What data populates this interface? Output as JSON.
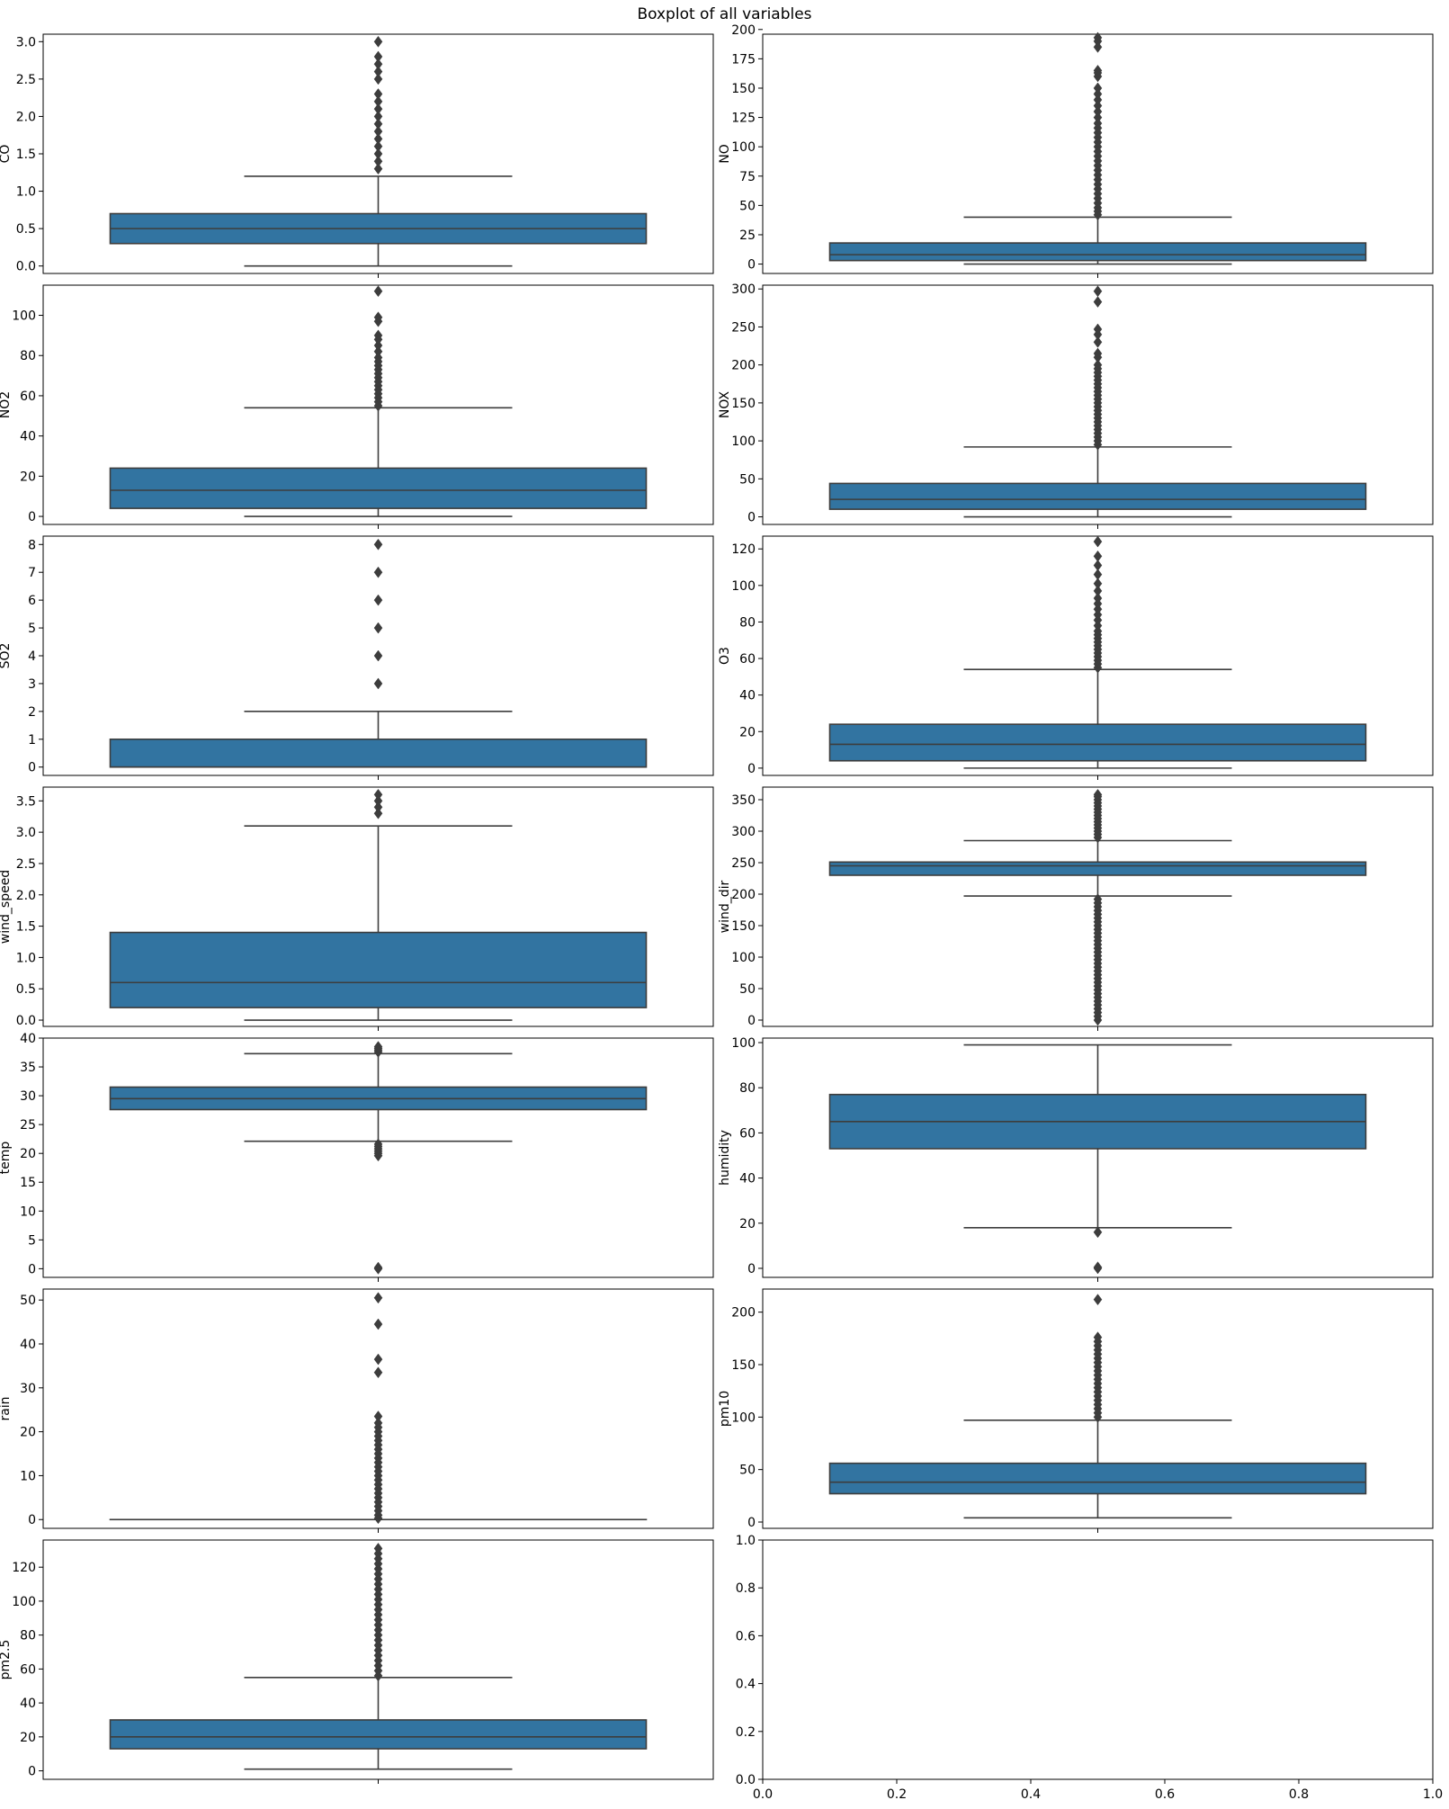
{
  "chart_data": {
    "title": "Boxplot of all variables",
    "type": "box",
    "layout": "7 rows x 2 columns",
    "colors": {
      "box_fill": "#3274a1",
      "line": "#3d3d3d",
      "axis": "#000000",
      "text": "#000000"
    },
    "panels": [
      {
        "ylabel": "CO",
        "ylim": [
          -0.1,
          3.1
        ],
        "yticks": [
          0.0,
          0.5,
          1.0,
          1.5,
          2.0,
          2.5,
          3.0
        ],
        "decimals": 1,
        "whisker_low": 0.0,
        "q1": 0.3,
        "median": 0.5,
        "q3": 0.7,
        "whisker_high": 1.2,
        "fliers": [
          1.3,
          1.4,
          1.5,
          1.6,
          1.7,
          1.8,
          1.9,
          2.0,
          2.1,
          2.2,
          2.3,
          2.5,
          2.6,
          2.7,
          2.8,
          3.0
        ]
      },
      {
        "ylabel": "NO",
        "ylim": [
          -8,
          196
        ],
        "yticks": [
          0,
          25,
          50,
          75,
          100,
          125,
          150,
          175,
          200
        ],
        "decimals": 0,
        "whisker_low": 0,
        "q1": 3,
        "median": 8,
        "q3": 18,
        "whisker_high": 40,
        "fliers": [
          42,
          45,
          48,
          52,
          56,
          60,
          64,
          68,
          72,
          76,
          80,
          84,
          88,
          92,
          96,
          100,
          104,
          108,
          112,
          116,
          120,
          125,
          130,
          135,
          140,
          145,
          150,
          160,
          163,
          165,
          185,
          190,
          193
        ]
      },
      {
        "ylabel": "NO2",
        "ylim": [
          -4,
          115
        ],
        "yticks": [
          0,
          20,
          40,
          60,
          80,
          100
        ],
        "decimals": 0,
        "whisker_low": 0,
        "q1": 4,
        "median": 13,
        "q3": 24,
        "whisker_high": 54,
        "fliers": [
          55,
          57,
          59,
          61,
          63,
          65,
          67,
          69,
          71,
          73,
          75,
          77,
          79,
          82,
          85,
          88,
          90,
          97,
          99,
          112
        ]
      },
      {
        "ylabel": "NOX",
        "ylim": [
          -10,
          305
        ],
        "yticks": [
          0,
          50,
          100,
          150,
          200,
          250,
          300
        ],
        "decimals": 0,
        "whisker_low": 0,
        "q1": 10,
        "median": 23,
        "q3": 44,
        "whisker_high": 92,
        "fliers": [
          95,
          100,
          105,
          110,
          115,
          120,
          125,
          130,
          135,
          140,
          145,
          150,
          155,
          160,
          165,
          170,
          175,
          180,
          185,
          190,
          195,
          200,
          210,
          215,
          230,
          240,
          247,
          283,
          297
        ]
      },
      {
        "ylabel": "SO2",
        "ylim": [
          -0.3,
          8.3
        ],
        "yticks": [
          0,
          1,
          2,
          3,
          4,
          5,
          6,
          7,
          8
        ],
        "decimals": 0,
        "whisker_low": 0,
        "q1": 0,
        "median": 0,
        "q3": 1,
        "whisker_high": 2,
        "fliers": [
          3,
          4,
          5,
          6,
          7,
          8
        ]
      },
      {
        "ylabel": "O3",
        "ylim": [
          -4,
          127
        ],
        "yticks": [
          0,
          20,
          40,
          60,
          80,
          100,
          120
        ],
        "decimals": 0,
        "whisker_low": 0,
        "q1": 4,
        "median": 13,
        "q3": 24,
        "whisker_high": 54,
        "fliers": [
          55,
          57,
          59,
          61,
          63,
          65,
          67,
          69,
          71,
          73,
          75,
          78,
          81,
          84,
          87,
          90,
          93,
          97,
          101,
          106,
          111,
          116,
          124
        ]
      },
      {
        "ylabel": "wind_speed",
        "ylim": [
          -0.1,
          3.72
        ],
        "yticks": [
          0.0,
          0.5,
          1.0,
          1.5,
          2.0,
          2.5,
          3.0,
          3.5
        ],
        "decimals": 1,
        "whisker_low": 0.0,
        "q1": 0.2,
        "median": 0.6,
        "q3": 1.4,
        "whisker_high": 3.1,
        "fliers": [
          3.3,
          3.4,
          3.5,
          3.6
        ]
      },
      {
        "ylabel": "wind_dir",
        "ylim": [
          -10,
          370
        ],
        "yticks": [
          0,
          50,
          100,
          150,
          200,
          250,
          300,
          350
        ],
        "decimals": 0,
        "whisker_low": 197,
        "q1": 230,
        "median": 245,
        "q3": 251,
        "whisker_high": 285,
        "fliers": [
          0,
          6,
          12,
          18,
          24,
          30,
          36,
          42,
          48,
          54,
          60,
          66,
          72,
          78,
          84,
          90,
          96,
          102,
          108,
          114,
          120,
          126,
          132,
          138,
          144,
          150,
          156,
          162,
          168,
          174,
          180,
          186,
          192,
          290,
          295,
          300,
          305,
          310,
          315,
          320,
          325,
          330,
          335,
          340,
          345,
          350,
          355,
          358
        ]
      },
      {
        "ylabel": "temp",
        "ylim": [
          -1.5,
          40
        ],
        "yticks": [
          0,
          5,
          10,
          15,
          20,
          25,
          30,
          35,
          40
        ],
        "decimals": 0,
        "whisker_low": 22.1,
        "q1": 27.6,
        "median": 29.5,
        "q3": 31.5,
        "whisker_high": 37.3,
        "fliers": [
          0,
          0.2,
          19.6,
          20.0,
          20.4,
          20.8,
          21.2,
          21.6,
          37.6,
          37.9,
          38.2,
          38.5
        ]
      },
      {
        "ylabel": "humidity",
        "ylim": [
          -4,
          102
        ],
        "yticks": [
          0,
          20,
          40,
          60,
          80,
          100
        ],
        "decimals": 0,
        "whisker_low": 18,
        "q1": 53,
        "median": 65,
        "q3": 77,
        "whisker_high": 99,
        "fliers": [
          0,
          0.5,
          16
        ]
      },
      {
        "ylabel": "rain",
        "ylim": [
          -2,
          52.5
        ],
        "yticks": [
          0,
          10,
          20,
          30,
          40,
          50
        ],
        "decimals": 0,
        "whisker_low": 0,
        "q1": 0,
        "median": 0,
        "q3": 0,
        "whisker_high": 0,
        "fliers": [
          0.3,
          1,
          2,
          3,
          4,
          5,
          6,
          7,
          8,
          9,
          10,
          11,
          12,
          13,
          14,
          15,
          16,
          17,
          18,
          19,
          20,
          21,
          22,
          23.5,
          33.5,
          36.5,
          44.5,
          50.5
        ]
      },
      {
        "ylabel": "pm10",
        "ylim": [
          -6,
          222
        ],
        "yticks": [
          0,
          50,
          100,
          150,
          200
        ],
        "decimals": 0,
        "whisker_low": 4,
        "q1": 27,
        "median": 38,
        "q3": 56,
        "whisker_high": 97,
        "fliers": [
          100,
          104,
          108,
          112,
          116,
          120,
          124,
          128,
          132,
          136,
          140,
          144,
          148,
          152,
          156,
          160,
          164,
          168,
          172,
          176,
          212
        ]
      },
      {
        "ylabel": "pm2.5",
        "ylim": [
          -5,
          136
        ],
        "yticks": [
          0,
          20,
          40,
          60,
          80,
          100,
          120
        ],
        "decimals": 0,
        "whisker_low": 1,
        "q1": 13,
        "median": 20,
        "q3": 30,
        "whisker_high": 55,
        "fliers": [
          56,
          59,
          62,
          65,
          68,
          71,
          74,
          77,
          80,
          83,
          86,
          89,
          92,
          95,
          98,
          101,
          104,
          107,
          110,
          113,
          116,
          119,
          122,
          125,
          128,
          131
        ]
      },
      {
        "ylabel": "",
        "empty": true,
        "xlim": [
          0,
          1
        ],
        "ylim": [
          0,
          1
        ],
        "xticks": [
          0.0,
          0.2,
          0.4,
          0.6,
          0.8,
          1.0
        ],
        "yticks": [
          0.0,
          0.2,
          0.4,
          0.6,
          0.8,
          1.0
        ],
        "decimals": 1
      }
    ]
  }
}
